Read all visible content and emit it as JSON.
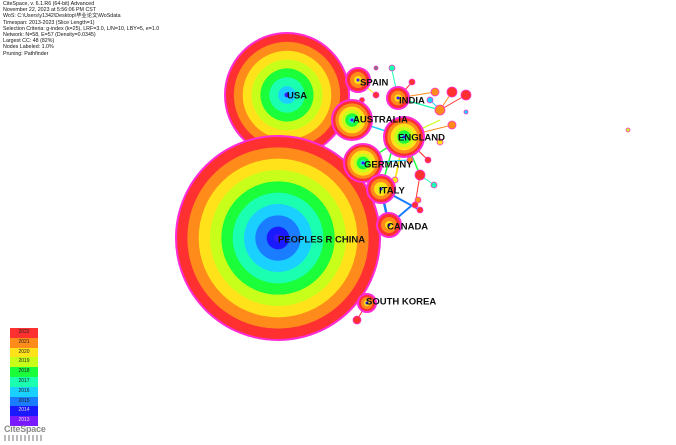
{
  "header": {
    "lines": [
      "CiteSpace, v. 6.1.R6 (64-bit) Advanced",
      "November 22, 2023 at 5:56:06 PM CST",
      "WoS: C:\\Users\\y1342\\Desktop\\毕业论文\\WoSdata",
      "Timespan: 2013-2023 (Slice Length=1)",
      "Selection Criteria: g-index (k=25), LRF=3.0, L/N=10, LBY=5, e=1.0",
      "Network: N=58, E=57 (Density=0.0345)",
      "Largest CC: 48 (82%)",
      "Nodes Labeled: 1.0%",
      "Pruning: Pathfinder"
    ]
  },
  "ring_colors": {
    "2022": "#ff3030",
    "2021": "#ff8c1a",
    "2020": "#ffe21a",
    "2019": "#c8ff1a",
    "2018": "#1aff3a",
    "2017": "#1affb0",
    "2016": "#1ad0ff",
    "2015": "#1a7dff",
    "2014": "#1a1aff",
    "2013": "#7a1aff"
  },
  "nodes": [
    {
      "name": "usa-node",
      "label": "USA",
      "rings": [
        "2022",
        "2021",
        "2020",
        "2019",
        "2018",
        "2017",
        "2016"
      ]
    },
    {
      "name": "china-node",
      "label": "PEOPLES R CHINA",
      "rings": [
        "2022",
        "2021",
        "2020",
        "2019",
        "2018",
        "2017",
        "2016",
        "2015",
        "2014"
      ]
    },
    {
      "name": "spain-node",
      "label": "SPAIN",
      "rings": [
        "2022",
        "2021",
        "2020"
      ]
    },
    {
      "name": "india-node",
      "label": "INDIA",
      "rings": [
        "2022",
        "2021",
        "2020"
      ]
    },
    {
      "name": "australia-node",
      "label": "AUSTRALIA",
      "rings": [
        "2022",
        "2021",
        "2020",
        "2019",
        "2018",
        "2017"
      ]
    },
    {
      "name": "england-node",
      "label": "ENGLAND",
      "rings": [
        "2022",
        "2021",
        "2020",
        "2019",
        "2018",
        "2017"
      ]
    },
    {
      "name": "germany-node",
      "label": "GERMANY",
      "rings": [
        "2022",
        "2021",
        "2020",
        "2019",
        "2018",
        "2017"
      ]
    },
    {
      "name": "italy-node",
      "label": "ITALY",
      "rings": [
        "2022",
        "2021",
        "2020",
        "2019"
      ]
    },
    {
      "name": "canada-node",
      "label": "CANADA",
      "rings": [
        "2022",
        "2021",
        "2020"
      ]
    },
    {
      "name": "south-korea-node",
      "label": "SOUTH KOREA",
      "rings": [
        "2022",
        "2021",
        "2020"
      ]
    }
  ],
  "legend": [
    "2022",
    "2021",
    "2020",
    "2019",
    "2018",
    "2017",
    "2016",
    "2015",
    "2014",
    "2013"
  ],
  "logo": {
    "text": "CiteSpace"
  }
}
